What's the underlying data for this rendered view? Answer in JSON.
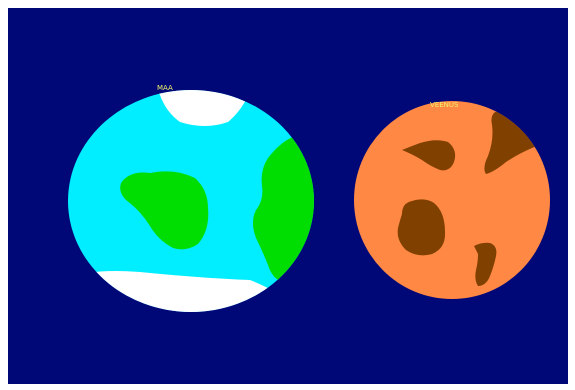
{
  "labels": {
    "earth": "MAA",
    "venus": "VEENUS"
  },
  "colors": {
    "space": "#000878",
    "earth_ocean": "#00eeff",
    "earth_land": "#00dd00",
    "ice": "#ffffff",
    "venus_surface": "#ff8844",
    "venus_spots": "#804000",
    "label": "#f2f26a",
    "border": "#ffffff"
  },
  "icons": {
    "earth": "earth-planet-icon",
    "venus": "venus-planet-icon"
  }
}
